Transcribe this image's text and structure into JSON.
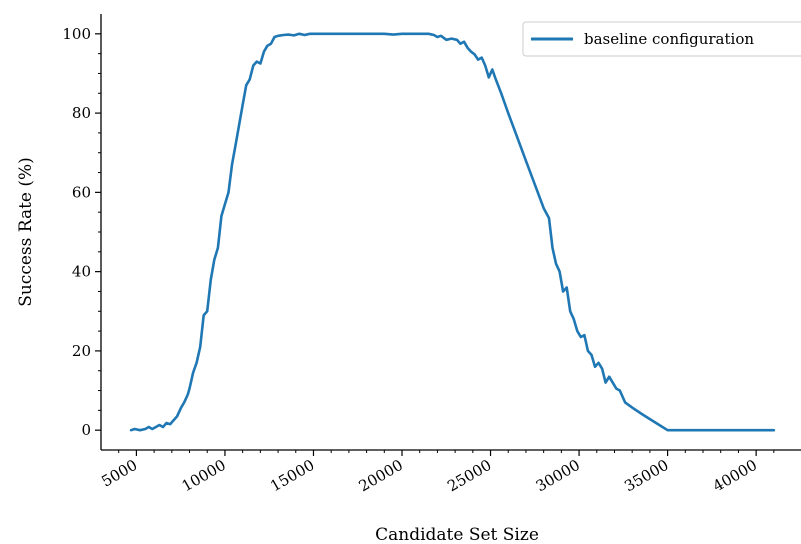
{
  "chart_data": {
    "type": "line",
    "title": "",
    "xlabel": "Candidate Set Size",
    "ylabel": "Success Rate (%)",
    "xlim": [
      3000,
      41800
    ],
    "ylim": [
      -5,
      105
    ],
    "xticks": [
      5000,
      10000,
      15000,
      20000,
      25000,
      30000,
      35000,
      40000
    ],
    "xtick_labels": [
      "5000",
      "10000",
      "15000",
      "20000",
      "25000",
      "30000",
      "35000",
      "40000"
    ],
    "yticks": [
      0,
      20,
      40,
      60,
      80,
      100
    ],
    "ytick_labels": [
      "0",
      "20",
      "40",
      "60",
      "80",
      "100"
    ],
    "grid": false,
    "legend_position": "top-right",
    "series": [
      {
        "name": "baseline configuration",
        "color": "#1f77b4",
        "points": [
          [
            4700,
            0
          ],
          [
            4900,
            0.3
          ],
          [
            5200,
            0
          ],
          [
            5500,
            0.3
          ],
          [
            5700,
            0.8
          ],
          [
            5900,
            0.3
          ],
          [
            6100,
            0.8
          ],
          [
            6300,
            1.3
          ],
          [
            6500,
            0.8
          ],
          [
            6700,
            1.8
          ],
          [
            6900,
            1.5
          ],
          [
            7100,
            2.5
          ],
          [
            7300,
            3.5
          ],
          [
            7500,
            5.5
          ],
          [
            7700,
            7
          ],
          [
            7900,
            9
          ],
          [
            8000,
            10.5
          ],
          [
            8200,
            14.5
          ],
          [
            8400,
            17
          ],
          [
            8600,
            21
          ],
          [
            8800,
            29
          ],
          [
            9000,
            30
          ],
          [
            9200,
            38
          ],
          [
            9400,
            43
          ],
          [
            9600,
            46
          ],
          [
            9800,
            54
          ],
          [
            10000,
            57
          ],
          [
            10200,
            60
          ],
          [
            10400,
            67
          ],
          [
            10600,
            72
          ],
          [
            10800,
            77
          ],
          [
            11000,
            82
          ],
          [
            11200,
            87
          ],
          [
            11400,
            88.5
          ],
          [
            11600,
            92
          ],
          [
            11800,
            93
          ],
          [
            12000,
            92.5
          ],
          [
            12200,
            95.5
          ],
          [
            12400,
            97
          ],
          [
            12600,
            97.5
          ],
          [
            12800,
            99.2
          ],
          [
            13000,
            99.5
          ],
          [
            13300,
            99.7
          ],
          [
            13600,
            99.8
          ],
          [
            13900,
            99.6
          ],
          [
            14200,
            100
          ],
          [
            14500,
            99.7
          ],
          [
            14800,
            100
          ],
          [
            15200,
            100
          ],
          [
            16000,
            100
          ],
          [
            17000,
            100
          ],
          [
            18000,
            100
          ],
          [
            19000,
            100
          ],
          [
            19500,
            99.8
          ],
          [
            20000,
            100
          ],
          [
            21000,
            100
          ],
          [
            21500,
            100
          ],
          [
            21800,
            99.7
          ],
          [
            22000,
            99.2
          ],
          [
            22200,
            99.5
          ],
          [
            22500,
            98.5
          ],
          [
            22800,
            98.8
          ],
          [
            23100,
            98.5
          ],
          [
            23300,
            97.5
          ],
          [
            23500,
            98
          ],
          [
            23700,
            96.5
          ],
          [
            23900,
            95.5
          ],
          [
            24100,
            94.8
          ],
          [
            24300,
            93.5
          ],
          [
            24500,
            94
          ],
          [
            24700,
            92
          ],
          [
            24900,
            89
          ],
          [
            25100,
            91
          ],
          [
            25300,
            88.5
          ],
          [
            25600,
            85
          ],
          [
            26000,
            80
          ],
          [
            26500,
            74
          ],
          [
            27000,
            68
          ],
          [
            27500,
            62
          ],
          [
            28000,
            56
          ],
          [
            28300,
            53.5
          ],
          [
            28500,
            46
          ],
          [
            28700,
            42
          ],
          [
            28900,
            40
          ],
          [
            29100,
            35
          ],
          [
            29300,
            36
          ],
          [
            29500,
            30
          ],
          [
            29700,
            28
          ],
          [
            29900,
            25
          ],
          [
            30100,
            23.5
          ],
          [
            30300,
            24
          ],
          [
            30500,
            20
          ],
          [
            30700,
            19
          ],
          [
            30900,
            16
          ],
          [
            31100,
            17
          ],
          [
            31300,
            15.5
          ],
          [
            31500,
            12
          ],
          [
            31700,
            13.5
          ],
          [
            31900,
            12
          ],
          [
            32100,
            10.5
          ],
          [
            32300,
            10
          ],
          [
            32600,
            7
          ],
          [
            33000,
            5.7
          ],
          [
            33500,
            4.2
          ],
          [
            34000,
            2.8
          ],
          [
            34500,
            1.4
          ],
          [
            35000,
            0
          ],
          [
            36000,
            0
          ],
          [
            37000,
            0
          ],
          [
            38000,
            0
          ],
          [
            39000,
            0
          ],
          [
            40000,
            0
          ],
          [
            41000,
            0
          ]
        ]
      }
    ]
  }
}
